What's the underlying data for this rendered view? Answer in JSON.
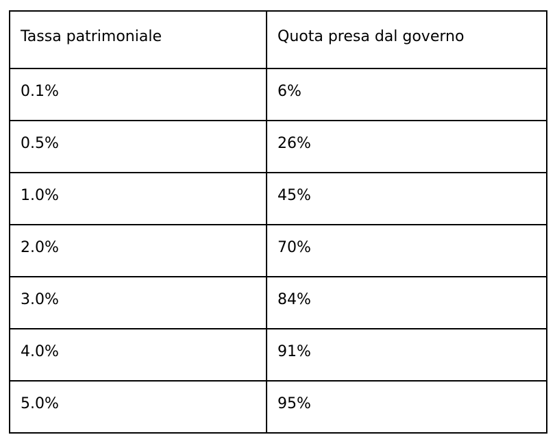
{
  "chart_data": {
    "type": "table",
    "title": "",
    "columns": [
      "Tassa patrimoniale",
      "Quota presa dal governo"
    ],
    "rows": [
      [
        "0.1%",
        "6%"
      ],
      [
        "0.5%",
        "26%"
      ],
      [
        "1.0%",
        "45%"
      ],
      [
        "2.0%",
        "70%"
      ],
      [
        "3.0%",
        "84%"
      ],
      [
        "4.0%",
        "91%"
      ],
      [
        "5.0%",
        "95%"
      ]
    ],
    "x_numeric_tax_rate_percent": [
      0.1,
      0.5,
      1.0,
      2.0,
      3.0,
      4.0,
      5.0
    ],
    "y_numeric_government_share_percent": [
      6,
      26,
      45,
      70,
      84,
      91,
      95
    ]
  },
  "colors": {
    "border": "#000000",
    "text": "#000000",
    "background": "#ffffff"
  }
}
